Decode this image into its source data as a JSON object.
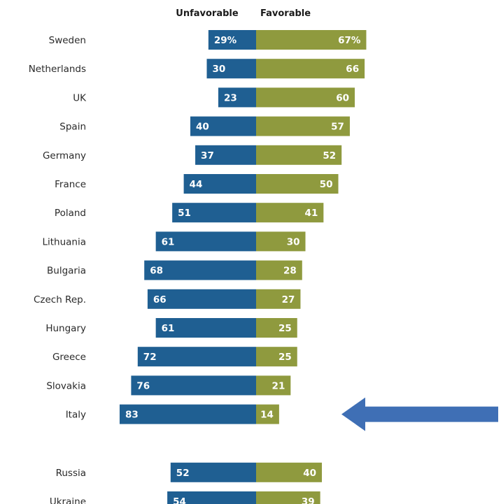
{
  "chart_data": {
    "type": "bar",
    "orientation": "diverging-horizontal",
    "headers": {
      "negative": "Unfavorable",
      "positive": "Favorable"
    },
    "categories": [
      "Sweden",
      "Netherlands",
      "UK",
      "Spain",
      "Germany",
      "France",
      "Poland",
      "Lithuania",
      "Bulgaria",
      "Czech Rep.",
      "Hungary",
      "Greece",
      "Slovakia",
      "Italy",
      "Russia",
      "Ukraine"
    ],
    "groups": [
      {
        "start": 0,
        "count": 14
      },
      {
        "start": 14,
        "count": 2
      }
    ],
    "series": [
      {
        "key": "negative",
        "values": [
          29,
          30,
          23,
          40,
          37,
          44,
          51,
          61,
          68,
          66,
          61,
          72,
          76,
          83,
          52,
          54
        ],
        "labels": [
          "29%",
          "30",
          "23",
          "40",
          "37",
          "44",
          "51",
          "61",
          "68",
          "66",
          "61",
          "72",
          "76",
          "83",
          "52",
          "54"
        ]
      },
      {
        "key": "positive",
        "values": [
          67,
          66,
          60,
          57,
          52,
          50,
          41,
          30,
          28,
          27,
          25,
          25,
          21,
          14,
          40,
          39
        ],
        "labels": [
          "67%",
          "66",
          "60",
          "57",
          "52",
          "50",
          "41",
          "30",
          "28",
          "27",
          "25",
          "25",
          "21",
          "14",
          "40",
          "39"
        ]
      }
    ],
    "colors": {
      "negative": "#1f5f92",
      "positive": "#8f9a3e",
      "arrow": "#3f6fb5"
    },
    "annotation": {
      "type": "arrow",
      "points_to": "Italy",
      "direction": "left"
    }
  }
}
